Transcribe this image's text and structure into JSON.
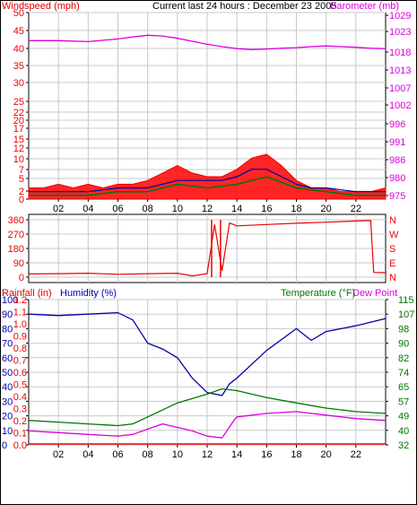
{
  "colors": {
    "wind": "#ee0000",
    "gust_fill": "#ff0000",
    "avg_wind": "#007700",
    "barometer": "#dd00dd",
    "humidity": "#0000aa",
    "temperature": "#007700",
    "dewpoint": "#dd00dd",
    "rainfall": "#ee0000",
    "direction": "#ee0000",
    "grid": "#c8c8c8",
    "axis_text": "#000000"
  },
  "header": {
    "left_label": "Windspeed (mph)",
    "center_label": "Current last 24 hours : December 23 2005",
    "right_label": "Barometer (mb)"
  },
  "chart_data": [
    {
      "type": "line",
      "id": "wind",
      "left_axis": {
        "label": "Windspeed (mph)",
        "ticks": [
          "0",
          "2",
          "5",
          "7",
          "10",
          "12",
          "15",
          "17",
          "20",
          "22",
          "25",
          "30",
          "35",
          "40",
          "45",
          "50"
        ],
        "range": [
          0,
          50
        ]
      },
      "right_axis": {
        "label": "Barometer (mb)",
        "ticks": [
          "975",
          "980",
          "986",
          "991",
          "996",
          "1002",
          "1007",
          "1013",
          "1018",
          "1023",
          "1029"
        ],
        "range": [
          975,
          1029
        ]
      },
      "x_ticks": [
        "02",
        "04",
        "06",
        "08",
        "10",
        "12",
        "14",
        "16",
        "18",
        "20",
        "22"
      ],
      "series": [
        {
          "name": "Windspeed (mph)",
          "color": "wind",
          "x": [
            0,
            1,
            2,
            3,
            4,
            5,
            6,
            7,
            8,
            9,
            10,
            11,
            12,
            13,
            14,
            15,
            16,
            17,
            18,
            19,
            20,
            21,
            22,
            23,
            24
          ],
          "values": [
            3,
            3,
            4,
            3,
            4,
            3,
            4,
            4,
            5,
            7,
            9,
            7,
            6,
            6,
            8,
            11,
            12,
            9,
            5,
            3,
            3,
            2,
            2,
            2,
            3
          ]
        },
        {
          "name": "Barometer (mb)",
          "color": "barometer",
          "x": [
            0,
            2,
            4,
            5,
            6,
            7,
            8,
            9,
            10,
            11,
            12,
            13,
            14,
            15,
            16,
            17,
            18,
            19,
            20,
            21,
            22,
            23,
            24
          ],
          "values": [
            1021.4,
            1021.4,
            1021.1,
            1021.5,
            1021.9,
            1022.5,
            1023.0,
            1022.8,
            1022.1,
            1021.2,
            1020.3,
            1019.6,
            1019.0,
            1018.7,
            1018.9,
            1019.1,
            1019.3,
            1019.6,
            1019.8,
            1019.6,
            1019.4,
            1019.1,
            1019.0
          ]
        },
        {
          "name": "Humidity (%)",
          "color": "humidity",
          "x": [
            0,
            2,
            4,
            6,
            8,
            10,
            12,
            13,
            14,
            15,
            16,
            17,
            18,
            19,
            20,
            22,
            24
          ],
          "values": [
            2,
            2,
            2,
            3,
            3,
            5,
            5,
            5,
            6,
            8,
            8,
            6,
            4,
            3,
            3,
            2,
            2
          ]
        },
        {
          "name": "Temperature (°F)",
          "color": "temperature",
          "x": [
            0,
            2,
            4,
            6,
            8,
            10,
            12,
            14,
            16,
            18,
            20,
            22,
            24
          ],
          "values": [
            1,
            1,
            1,
            2,
            2,
            4,
            3,
            4,
            6,
            3,
            2,
            1,
            1
          ]
        }
      ]
    },
    {
      "type": "line",
      "id": "direction",
      "left_axis": {
        "ticks": [
          "0",
          "90",
          "180",
          "270",
          "360"
        ],
        "range": [
          0,
          360
        ]
      },
      "right_axis": {
        "ticks": [
          "N",
          "E",
          "S",
          "W",
          "N"
        ]
      },
      "series": [
        {
          "name": "Wind direction",
          "color": "direction",
          "x": [
            0,
            2,
            4,
            6,
            8,
            10,
            11,
            12,
            12.5,
            13,
            13.5,
            14,
            16,
            18,
            20,
            22,
            23,
            23.2,
            24
          ],
          "values": [
            20,
            22,
            25,
            18,
            22,
            25,
            8,
            22,
            330,
            40,
            340,
            322,
            330,
            338,
            345,
            352,
            355,
            30,
            28
          ]
        }
      ]
    },
    {
      "type": "line",
      "id": "climate",
      "labels": {
        "rainfall": "Rainfall (in)",
        "humidity": "Humidity (%)",
        "temperature": "Temperature (°F)",
        "dewpoint": "Dew Point"
      },
      "left_axis_humidity": {
        "ticks": [
          "0",
          "10",
          "20",
          "30",
          "40",
          "50",
          "60",
          "70",
          "80",
          "90",
          "100"
        ],
        "range": [
          0,
          100
        ]
      },
      "left_axis_rain": {
        "ticks": [
          "0.0",
          "0.1",
          "0.2",
          "0.3",
          "0.4",
          "0.5",
          "0.6",
          "0.7",
          "0.8",
          "0.9",
          "1.0",
          "1.1",
          "1.2"
        ]
      },
      "right_axis": {
        "ticks": [
          "32",
          "40",
          "49",
          "57",
          "65",
          "74",
          "82",
          "90",
          "98",
          "107",
          "115"
        ],
        "range": [
          32,
          115
        ]
      },
      "x_ticks": [
        "02",
        "04",
        "06",
        "08",
        "10",
        "12",
        "14",
        "16",
        "18",
        "20",
        "22"
      ],
      "series": [
        {
          "name": "Humidity (%)",
          "color": "humidity",
          "x": [
            0,
            2,
            4,
            6,
            7,
            8,
            9,
            10,
            11,
            12,
            13,
            13.5,
            14,
            16,
            18,
            19,
            20,
            22,
            24
          ],
          "values": [
            90,
            89,
            90,
            91,
            86,
            70,
            66,
            60,
            46,
            36,
            34,
            42,
            46,
            65,
            80,
            72,
            78,
            82,
            87
          ]
        },
        {
          "name": "Temperature (°F)",
          "color": "temperature",
          "x": [
            0,
            2,
            4,
            6,
            7,
            8,
            10,
            12,
            13,
            14,
            16,
            18,
            20,
            22,
            24
          ],
          "values": [
            46,
            45,
            44,
            43,
            44,
            48,
            56,
            61,
            64,
            63,
            59,
            56,
            53,
            51,
            50
          ]
        },
        {
          "name": "Dew Point",
          "color": "dewpoint",
          "x": [
            0,
            2,
            4,
            6,
            7,
            8,
            9,
            10,
            11,
            12,
            13,
            13.8,
            14,
            16,
            18,
            20,
            22,
            24
          ],
          "values": [
            40,
            39,
            38,
            37,
            38,
            41,
            44,
            42,
            40,
            37,
            36,
            46,
            48,
            50,
            51,
            49,
            47,
            46
          ]
        },
        {
          "name": "Rainfall (in)",
          "color": "rainfall",
          "x": [
            0,
            24
          ],
          "values": [
            0,
            0
          ]
        }
      ]
    }
  ]
}
